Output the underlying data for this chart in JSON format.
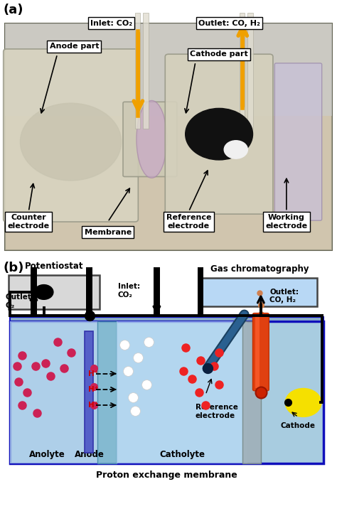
{
  "panel_a": {
    "label": "(a)",
    "bg_color": "#b8a888",
    "photo_bg": "#c8baa0",
    "anode_part_color": "#d0cdb8",
    "cathode_part_color": "#d4d0bc",
    "mid_color": "#c8c5b0",
    "right_slab_color": "#c8c0d8",
    "arrow_color": "#f0a000",
    "labels": {
      "inlet": "Inlet: CO₂",
      "outlet": "Outlet: CO, H₂",
      "anode_part": "Anode part",
      "cathode_part": "Cathode part",
      "counter": "Counter\nelectrode",
      "membrane": "Membrane",
      "reference": "Reference\nelectrode",
      "working": "Working\nelectrode"
    }
  },
  "panel_b": {
    "label": "(b)",
    "cell_color": "#a8cce0",
    "cell_edge": "#1010bb",
    "anolyte_color": "#b0d0ec",
    "catholyte_color": "#b8daf5",
    "membrane_color": "#80b8d0",
    "cath_sep_color": "#a0b0b8",
    "anode_plate_color": "#5560c8",
    "anode_plate_edge": "#3333aa",
    "potentiostat_color": "#d8d8d8",
    "gc_color": "#b8d8f5",
    "orange_tube_color": "#e04010",
    "orange_tube_highlight": "#ff6030",
    "cathode_color": "#f5e000",
    "cathode_edge": "#c8b000",
    "ref_elec_color": "#1a5080",
    "anolyte_dot_color": "#cc2255",
    "white_dot_color": "#ffffff",
    "red_dot_color": "#ee2222",
    "hp_color": "#cc0000",
    "dotted_orange": "#e08040",
    "wire_color": "#000000",
    "labels": {
      "potentiostat": "Potentiostat",
      "gc": "Gas chromatography",
      "outlet_o2": "Outlet:\nO₂",
      "inlet_co2": "Inlet:\nCO₂",
      "outlet_co_h2": "Outlet:\nCO, H₂",
      "anolyte": "Anolyte",
      "anode": "Anode",
      "catholyte": "Catholyte",
      "ref_elec": "Reference\nelectrode",
      "cathode": "Cathode",
      "bottom": "Proton exchange membrane"
    }
  }
}
